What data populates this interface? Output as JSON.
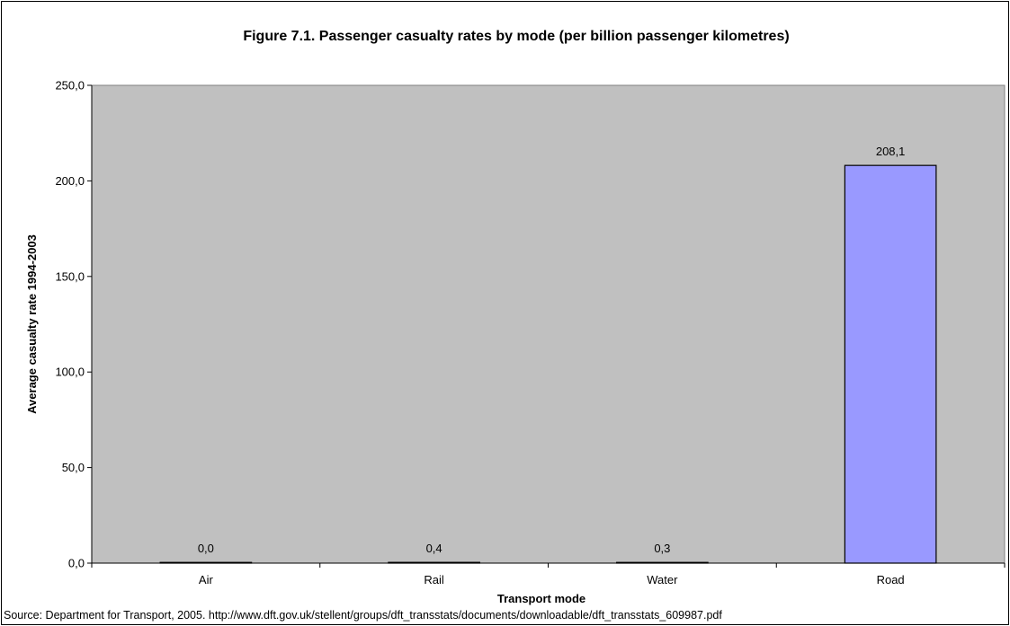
{
  "chart_data": {
    "type": "bar",
    "title": "Figure 7.1. Passenger casualty rates by mode (per billion passenger kilometres)",
    "xlabel": "Transport mode",
    "ylabel": "Average casualty rate 1994-2003",
    "categories": [
      "Air",
      "Rail",
      "Water",
      "Road"
    ],
    "values": [
      0.0,
      0.4,
      0.3,
      208.1
    ],
    "data_labels": [
      "0,0",
      "0,4",
      "0,3",
      "208,1"
    ],
    "ylim": [
      0,
      250
    ],
    "y_ticks": [
      0,
      50,
      100,
      150,
      200,
      250
    ],
    "y_tick_labels": [
      "0,0",
      "50,0",
      "100,0",
      "150,0",
      "200,0",
      "250,0"
    ],
    "grid": false,
    "legend": "none",
    "source": "Source: Department for Transport, 2005. http://www.dft.gov.uk/stellent/groups/dft_transstats/documents/downloadable/dft_transstats_609987.pdf"
  },
  "colors": {
    "plot_background": "#c0c0c0",
    "bar_fill": "#9999ff",
    "bar_stroke": "#000000",
    "text": "#000000"
  }
}
